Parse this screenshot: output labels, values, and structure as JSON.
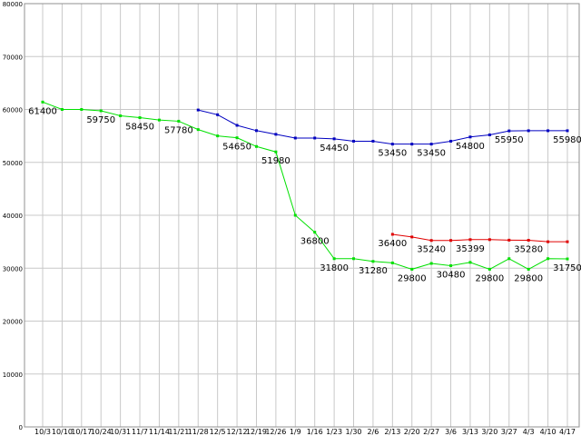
{
  "chart_data": {
    "type": "line",
    "title": "",
    "xlabel": "",
    "ylabel": "",
    "ylim": [
      0,
      80000
    ],
    "yticks": [
      0,
      10000,
      20000,
      30000,
      40000,
      50000,
      60000,
      70000,
      80000
    ],
    "grid": true,
    "legend": "none",
    "categories": [
      "10/3",
      "10/10",
      "10/17",
      "10/24",
      "10/31",
      "11/7",
      "11/14",
      "11/21",
      "11/28",
      "12/5",
      "12/12",
      "12/19",
      "12/26",
      "1/9",
      "1/16",
      "1/23",
      "1/30",
      "2/6",
      "2/13",
      "2/20",
      "2/27",
      "3/6",
      "3/13",
      "3/20",
      "3/27",
      "4/3",
      "4/10",
      "4/17"
    ],
    "series": [
      {
        "color": "#00e000",
        "values": [
          61400,
          60000,
          60000,
          59750,
          58800,
          58450,
          58000,
          57780,
          56200,
          55000,
          54650,
          53000,
          51980,
          40000,
          36800,
          31800,
          31800,
          31280,
          31000,
          29800,
          30900,
          30480,
          31100,
          29800,
          31800,
          29800,
          31800,
          31750
        ]
      },
      {
        "color": "#0000c0",
        "values": [
          null,
          null,
          null,
          null,
          null,
          null,
          null,
          null,
          59900,
          59000,
          57000,
          56000,
          55300,
          54600,
          54600,
          54450,
          54000,
          54000,
          53450,
          53450,
          53450,
          54000,
          54800,
          55200,
          55950,
          55980,
          55980,
          55980
        ]
      },
      {
        "color": "#e00000",
        "values": [
          null,
          null,
          null,
          null,
          null,
          null,
          null,
          null,
          null,
          null,
          null,
          null,
          null,
          null,
          null,
          null,
          null,
          null,
          36400,
          35900,
          35240,
          35240,
          35399,
          35399,
          35300,
          35280,
          35000,
          35000
        ]
      }
    ],
    "data_labels": [
      {
        "text": "61400",
        "series": 0,
        "index": 0
      },
      {
        "text": "59750",
        "series": 0,
        "index": 3
      },
      {
        "text": "58450",
        "series": 0,
        "index": 5
      },
      {
        "text": "57780",
        "series": 0,
        "index": 7
      },
      {
        "text": "54650",
        "series": 0,
        "index": 10
      },
      {
        "text": "51980",
        "series": 0,
        "index": 12
      },
      {
        "text": "36800",
        "series": 0,
        "index": 14
      },
      {
        "text": "31800",
        "series": 0,
        "index": 15
      },
      {
        "text": "31280",
        "series": 0,
        "index": 17
      },
      {
        "text": "29800",
        "series": 0,
        "index": 19
      },
      {
        "text": "30480",
        "series": 0,
        "index": 21
      },
      {
        "text": "29800",
        "series": 0,
        "index": 23
      },
      {
        "text": "29800",
        "series": 0,
        "index": 25
      },
      {
        "text": "31750",
        "series": 0,
        "index": 27
      },
      {
        "text": "54450",
        "series": 1,
        "index": 15
      },
      {
        "text": "53450",
        "series": 1,
        "index": 18
      },
      {
        "text": "53450",
        "series": 1,
        "index": 20
      },
      {
        "text": "54800",
        "series": 1,
        "index": 22
      },
      {
        "text": "55950",
        "series": 1,
        "index": 24
      },
      {
        "text": "55980",
        "series": 1,
        "index": 27
      },
      {
        "text": "36400",
        "series": 2,
        "index": 18
      },
      {
        "text": "35240",
        "series": 2,
        "index": 20
      },
      {
        "text": "35399",
        "series": 2,
        "index": 22
      },
      {
        "text": "35280",
        "series": 2,
        "index": 25
      }
    ]
  }
}
